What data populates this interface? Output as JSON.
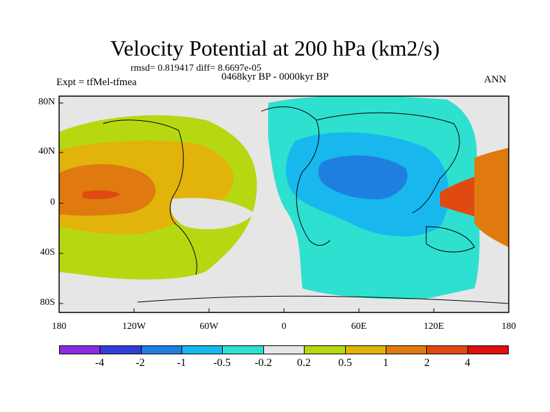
{
  "title": "Velocity Potential at 200 hPa (km2/s)",
  "stats": "rmsd= 0.819417 diff= 8.6697e-05",
  "period": "0468kyr BP - 0000kyr BP",
  "experiment": "Expt = tfMel-tfmea",
  "season": "ANN",
  "axes": {
    "y_ticks": [
      "80N",
      "40N",
      "0",
      "40S",
      "80S"
    ],
    "x_ticks": [
      "180",
      "120W",
      "60W",
      "0",
      "60E",
      "120E",
      "180"
    ]
  },
  "colorbar": {
    "colors": [
      "#8a2be2",
      "#2f3fd6",
      "#1f7fe0",
      "#18b8ee",
      "#2ee0cf",
      "#e6e6e6",
      "#b5d811",
      "#e2b30a",
      "#e07a10",
      "#e04a12",
      "#e01010"
    ],
    "labels": [
      "-4",
      "-2",
      "-1",
      "-0.5",
      "-0.2",
      "0.2",
      "0.5",
      "1",
      "2",
      "4"
    ]
  },
  "colors": {
    "missing": "#e6e6e6",
    "coastline": "#000000"
  }
}
